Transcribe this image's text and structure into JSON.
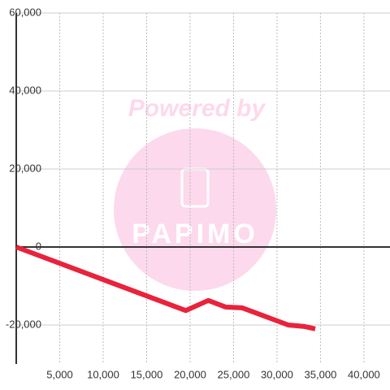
{
  "chart_data": {
    "type": "line",
    "watermark": [
      "Powered by",
      "PAPIMO"
    ],
    "x": [
      0,
      19500,
      22100,
      24100,
      26000,
      31300,
      33200,
      34400
    ],
    "series": [
      {
        "color": "#e8233b",
        "values": [
          0,
          -16300,
          -13700,
          -15400,
          -15600,
          -20000,
          -20400,
          -21000
        ]
      }
    ],
    "xlim": [
      0,
      43000
    ],
    "ylim": [
      -30000,
      60000
    ],
    "xticks": [
      {
        "value": 5000,
        "label": "5,000"
      },
      {
        "value": 10000,
        "label": "10,000"
      },
      {
        "value": 15000,
        "label": "15,000"
      },
      {
        "value": 20000,
        "label": "20,000"
      },
      {
        "value": 25000,
        "label": "25,000"
      },
      {
        "value": 30000,
        "label": "30,000"
      },
      {
        "value": 35000,
        "label": "35,000"
      },
      {
        "value": 40000,
        "label": "40,000"
      }
    ],
    "yticks": [
      {
        "value": -20000,
        "label": "-20,000"
      },
      0,
      {
        "value": 20000,
        "label": "20,000"
      },
      {
        "value": 40000,
        "label": "40,000"
      },
      {
        "value": 60000,
        "label": "60,000"
      }
    ],
    "grid": true
  }
}
